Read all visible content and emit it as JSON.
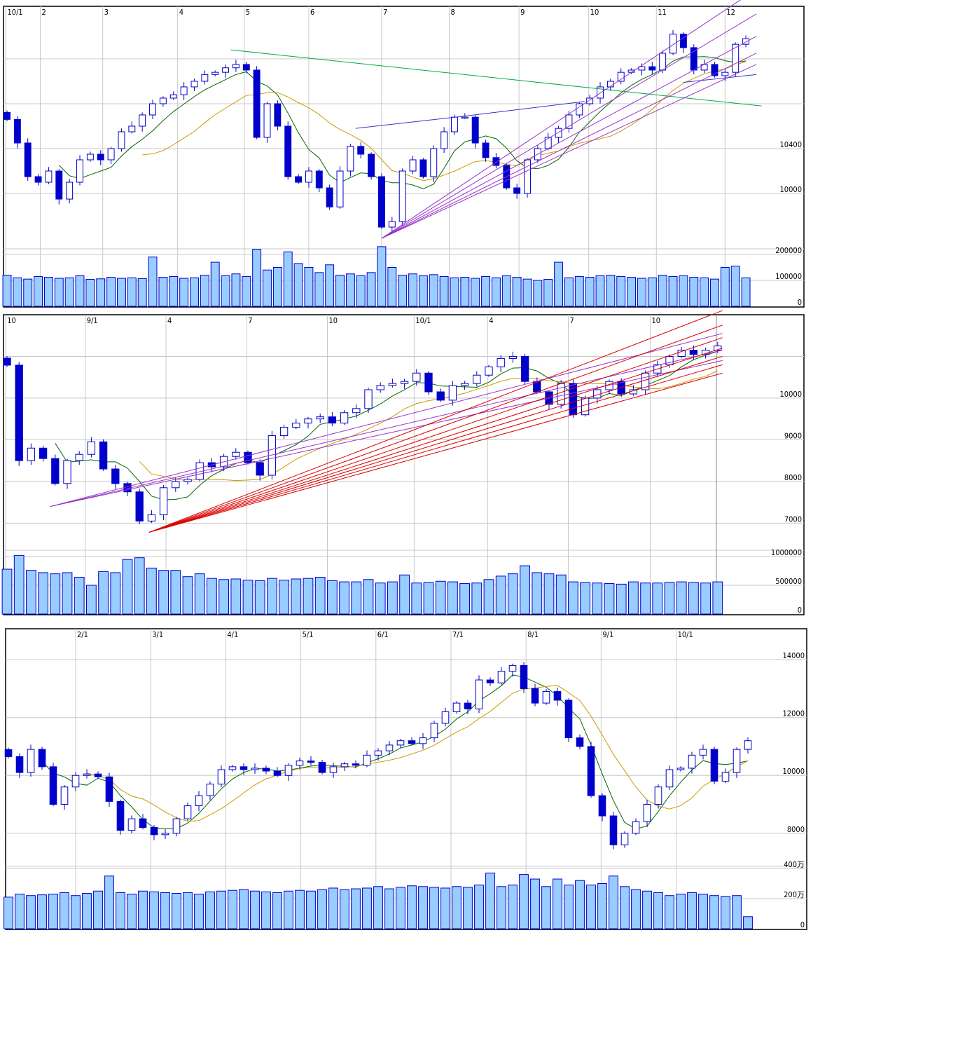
{
  "colors": {
    "up_fill": "#ffffff",
    "candle": "#0000cc",
    "volume_fill": "#99ccff",
    "volume_stroke": "#0000cc",
    "ma_short": "#006600",
    "ma_long": "#cc9900",
    "trend_purple": "#9933cc",
    "trend_blue": "#3333cc",
    "trend_green": "#00aa44",
    "trend_red": "#dd0000"
  },
  "chart_data": [
    {
      "type": "candlestick",
      "name_hint": "",
      "x_labels": [
        {
          "label": "10/1",
          "at": -0.1
        },
        {
          "label": "2",
          "at": 3.2
        },
        {
          "label": "3",
          "at": 9.2
        },
        {
          "label": "4",
          "at": 16.4
        },
        {
          "label": "5",
          "at": 22.8
        },
        {
          "label": "6",
          "at": 29
        },
        {
          "label": "7",
          "at": 36
        },
        {
          "label": "8",
          "at": 42.5
        },
        {
          "label": "9",
          "at": 49.2
        },
        {
          "label": "10",
          "at": 55.9
        },
        {
          "label": "11",
          "at": 62.4
        },
        {
          "label": "12",
          "at": 69
        }
      ],
      "ylim": [
        9569,
        11662
      ],
      "y_grid": [
        10000,
        10400,
        10800,
        11200
      ],
      "y_ticks": [
        {
          "value": 10400,
          "label": "10400"
        },
        {
          "value": 10000,
          "label": "10000"
        }
      ],
      "vlim": [
        0,
        221600
      ],
      "v_ticks": [
        {
          "value": 200000,
          "label": "200000"
        },
        {
          "value": 100000,
          "label": "100000"
        },
        {
          "value": 0,
          "label": "0"
        }
      ],
      "closes": [
        10660,
        10450,
        10150,
        10100,
        10200,
        9950,
        10100,
        10300,
        10350,
        10300,
        10400,
        10550,
        10600,
        10700,
        10800,
        10850,
        10880,
        10950,
        11000,
        11060,
        11080,
        11120,
        11150,
        11100,
        10500,
        10800,
        10600,
        10150,
        10100,
        10200,
        10050,
        9880,
        10200,
        10420,
        10350,
        10150,
        9700,
        9750,
        10200,
        10300,
        10150,
        10400,
        10550,
        10680,
        10680,
        10450,
        10320,
        10250,
        10050,
        10000,
        10300,
        10400,
        10500,
        10580,
        10700,
        10800,
        10850,
        10950,
        11000,
        11080,
        11100,
        11130,
        11100,
        11250,
        11420,
        11300,
        11100,
        11150,
        11050,
        11080,
        11330,
        11380
      ],
      "volumes": [
        120000,
        110000,
        105000,
        115000,
        112000,
        108000,
        110000,
        118000,
        104000,
        106000,
        112000,
        108000,
        110000,
        107000,
        190000,
        112000,
        115000,
        108000,
        110000,
        120000,
        170000,
        118000,
        125000,
        115000,
        220000,
        140000,
        150000,
        210000,
        165000,
        150000,
        130000,
        160000,
        120000,
        125000,
        118000,
        130000,
        230000,
        150000,
        120000,
        125000,
        118000,
        122000,
        115000,
        110000,
        112000,
        108000,
        115000,
        110000,
        118000,
        112000,
        105000,
        100000,
        104000,
        170000,
        110000,
        115000,
        112000,
        118000,
        120000,
        115000,
        112000,
        108000,
        110000,
        120000,
        115000,
        118000,
        112000,
        110000,
        105000,
        150000,
        155000,
        110000
      ],
      "trendlines": [
        {
          "color": "trend_green",
          "points": [
            [
              21.5,
              11280
            ],
            [
              72.5,
              10780
            ]
          ]
        },
        {
          "color": "trend_blue",
          "points": [
            [
              33.5,
              10580
            ],
            [
              44,
              10690
            ],
            [
              55.5,
              10820
            ]
          ]
        },
        {
          "color": "trend_blue",
          "points": [
            [
              65,
              10990
            ],
            [
              72,
              11060
            ]
          ]
        },
        {
          "color": "trend_purple",
          "points": [
            [
              36,
              9600
            ],
            [
              72.5,
              11850
            ]
          ]
        },
        {
          "color": "trend_purple",
          "points": [
            [
              36,
              9600
            ],
            [
              72,
              11600
            ]
          ]
        },
        {
          "color": "trend_purple",
          "points": [
            [
              36,
              9600
            ],
            [
              72,
              11400
            ]
          ]
        },
        {
          "color": "trend_purple",
          "points": [
            [
              36,
              9600
            ],
            [
              72,
              11250
            ]
          ]
        },
        {
          "color": "trend_purple",
          "points": [
            [
              36,
              9600
            ],
            [
              72,
              11150
            ]
          ]
        }
      ]
    },
    {
      "type": "candlestick",
      "x_labels": [
        {
          "label": "10",
          "at": -0.1
        },
        {
          "label": "9/1",
          "at": 6.5
        },
        {
          "label": "4",
          "at": 13.2
        },
        {
          "label": "7",
          "at": 19.9
        },
        {
          "label": "10",
          "at": 26.6
        },
        {
          "label": "10/1",
          "at": 33.8
        },
        {
          "label": "4",
          "at": 39.9
        },
        {
          "label": "7",
          "at": 46.6
        },
        {
          "label": "10",
          "at": 53.4
        }
      ],
      "ylim": [
        6350,
        11983
      ],
      "y_grid": [
        7000,
        8000,
        9000,
        10000,
        11000
      ],
      "y_ticks": [
        {
          "value": 10000,
          "label": "10000"
        },
        {
          "value": 9000,
          "label": "9000"
        },
        {
          "value": 8000,
          "label": "8000"
        },
        {
          "value": 7000,
          "label": "7000"
        }
      ],
      "vlim": [
        0,
        1110000
      ],
      "v_ticks": [
        {
          "value": 1000000,
          "label": "1000000"
        },
        {
          "value": 500000,
          "label": "500000"
        },
        {
          "value": 0,
          "label": "0"
        }
      ],
      "closes": [
        10790,
        8500,
        8800,
        8550,
        7950,
        8500,
        8650,
        8950,
        8300,
        7950,
        7750,
        7050,
        7200,
        7850,
        8000,
        8050,
        8450,
        8350,
        8600,
        8700,
        8450,
        8150,
        9100,
        9300,
        9400,
        9500,
        9550,
        9400,
        9650,
        9750,
        10200,
        10300,
        10350,
        10400,
        10600,
        10150,
        9950,
        10300,
        10350,
        10550,
        10750,
        10950,
        11000,
        10400,
        10150,
        9850,
        10350,
        9600,
        10000,
        10200,
        10400,
        10100,
        10200,
        10600,
        10800,
        11000,
        11150,
        11050,
        11150,
        11250
      ],
      "volumes": [
        780000,
        1020000,
        760000,
        720000,
        700000,
        720000,
        640000,
        500000,
        740000,
        720000,
        950000,
        980000,
        800000,
        760000,
        760000,
        650000,
        700000,
        620000,
        600000,
        610000,
        590000,
        580000,
        620000,
        590000,
        610000,
        620000,
        640000,
        580000,
        560000,
        560000,
        600000,
        540000,
        560000,
        680000,
        540000,
        550000,
        570000,
        560000,
        530000,
        540000,
        600000,
        660000,
        700000,
        840000,
        720000,
        700000,
        680000,
        560000,
        550000,
        540000,
        530000,
        520000,
        560000,
        540000,
        540000,
        550000,
        560000,
        550000,
        540000,
        560000
      ],
      "trendlines": [
        {
          "color": "trend_purple",
          "points": [
            [
              3.6,
              7400
            ],
            [
              59.4,
              11550
            ]
          ]
        },
        {
          "color": "trend_purple",
          "points": [
            [
              3.6,
              7400
            ],
            [
              59.4,
              11150
            ]
          ]
        },
        {
          "color": "trend_purple",
          "points": [
            [
              3.6,
              7400
            ],
            [
              59.4,
              10900
            ]
          ]
        },
        {
          "color": "trend_red",
          "points": [
            [
              11.8,
              6780
            ],
            [
              59.4,
              12100
            ]
          ]
        },
        {
          "color": "trend_red",
          "points": [
            [
              11.8,
              6780
            ],
            [
              59.4,
              11750
            ]
          ]
        },
        {
          "color": "trend_red",
          "points": [
            [
              11.8,
              6780
            ],
            [
              59.4,
              11450
            ]
          ]
        },
        {
          "color": "trend_red",
          "points": [
            [
              11.8,
              6780
            ],
            [
              59.4,
              11200
            ]
          ]
        },
        {
          "color": "trend_red",
          "points": [
            [
              11.8,
              6780
            ],
            [
              59.4,
              11000
            ]
          ]
        },
        {
          "color": "trend_red",
          "points": [
            [
              11.8,
              6780
            ],
            [
              59.4,
              10800
            ]
          ]
        },
        {
          "color": "trend_red",
          "points": [
            [
              11.8,
              6780
            ],
            [
              59.4,
              10600
            ]
          ]
        }
      ]
    },
    {
      "type": "candlestick",
      "x_labels": [
        {
          "label": "2/1",
          "at": 6
        },
        {
          "label": "3/1",
          "at": 12.7
        },
        {
          "label": "4/1",
          "at": 19.4
        },
        {
          "label": "5/1",
          "at": 26.1
        },
        {
          "label": "6/1",
          "at": 32.8
        },
        {
          "label": "7/1",
          "at": 39.5
        },
        {
          "label": "8/1",
          "at": 46.2
        },
        {
          "label": "9/1",
          "at": 52.9
        },
        {
          "label": "10/1",
          "at": 59.6
        }
      ],
      "ylim": [
        6880,
        15046
      ],
      "y_grid": [
        8000,
        10000,
        12000,
        14000
      ],
      "y_ticks": [
        {
          "value": 14000,
          "label": "14000"
        },
        {
          "value": 12000,
          "label": "12000"
        },
        {
          "value": 10000,
          "label": "10000"
        },
        {
          "value": 8000,
          "label": "8000"
        }
      ],
      "vlim": [
        0,
        4140000
      ],
      "v_ticks": [
        {
          "value": 4000000,
          "label": "400万"
        },
        {
          "value": 2000000,
          "label": "200万"
        },
        {
          "value": 0,
          "label": "0"
        }
      ],
      "closes": [
        10650,
        10100,
        10900,
        10300,
        9000,
        9600,
        10000,
        10050,
        9950,
        9100,
        8100,
        8500,
        8200,
        7950,
        8000,
        8500,
        8950,
        9300,
        9700,
        10200,
        10300,
        10200,
        10250,
        10150,
        10000,
        10350,
        10500,
        10450,
        10100,
        10300,
        10400,
        10350,
        10700,
        10850,
        11050,
        11200,
        11100,
        11300,
        11800,
        12200,
        12500,
        12300,
        13300,
        13200,
        13600,
        13800,
        13000,
        12500,
        12900,
        12600,
        11300,
        11000,
        9300,
        8600,
        7600,
        8000,
        8400,
        9000,
        9600,
        10200,
        10250,
        10700,
        10900,
        9800,
        10100,
        10900,
        11200
      ],
      "volumes": [
        2100000,
        2300000,
        2200000,
        2250000,
        2300000,
        2400000,
        2200000,
        2350000,
        2500000,
        3500000,
        2400000,
        2300000,
        2500000,
        2450000,
        2400000,
        2350000,
        2400000,
        2300000,
        2450000,
        2500000,
        2550000,
        2600000,
        2500000,
        2450000,
        2400000,
        2500000,
        2550000,
        2500000,
        2600000,
        2700000,
        2600000,
        2650000,
        2700000,
        2800000,
        2650000,
        2750000,
        2850000,
        2800000,
        2750000,
        2700000,
        2800000,
        2750000,
        2900000,
        3700000,
        2800000,
        2900000,
        3600000,
        3300000,
        2800000,
        3300000,
        2900000,
        3200000,
        2900000,
        3000000,
        3500000,
        2800000,
        2600000,
        2500000,
        2400000,
        2200000,
        2300000,
        2400000,
        2300000,
        2200000,
        2150000,
        2200000,
        800000
      ],
      "trendlines": []
    }
  ]
}
